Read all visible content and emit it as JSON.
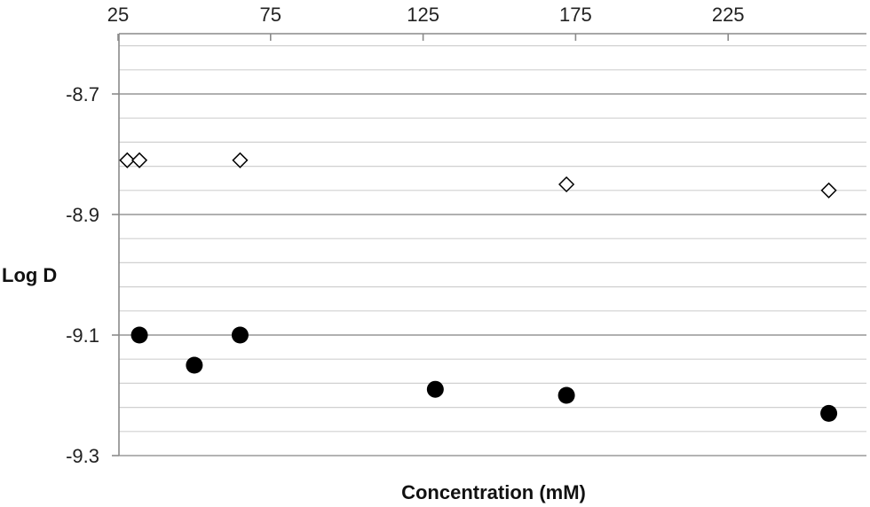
{
  "chart_data": {
    "type": "scatter",
    "title": "",
    "xlabel": "Concentration (mM)",
    "ylabel": "Log D",
    "x_axis_position": "top",
    "xlim": [
      25,
      270
    ],
    "ylim": [
      -9.3,
      -8.6
    ],
    "x_ticks": [
      25,
      75,
      125,
      175,
      225
    ],
    "x_tick_labels": [
      "25",
      "75",
      "125",
      "175",
      "225"
    ],
    "y_ticks": [
      -8.7,
      -8.9,
      -9.1,
      -9.3
    ],
    "y_tick_labels": [
      "-8.7",
      "-8.9",
      "-9.1",
      "-9.3"
    ],
    "grid": true,
    "minor_grid_step": 0.04,
    "legend": "none",
    "series": [
      {
        "marker": "diamond-open",
        "color": "#000000",
        "points": [
          {
            "x": 28,
            "y": -8.81
          },
          {
            "x": 32,
            "y": -8.81
          },
          {
            "x": 65,
            "y": -8.81
          },
          {
            "x": 172,
            "y": -8.85
          },
          {
            "x": 258,
            "y": -8.86
          }
        ]
      },
      {
        "marker": "circle-filled",
        "color": "#000000",
        "points": [
          {
            "x": 32,
            "y": -9.1
          },
          {
            "x": 50,
            "y": -9.15
          },
          {
            "x": 65,
            "y": -9.1
          },
          {
            "x": 129,
            "y": -9.19
          },
          {
            "x": 172,
            "y": -9.2
          },
          {
            "x": 258,
            "y": -9.23
          }
        ]
      }
    ]
  }
}
